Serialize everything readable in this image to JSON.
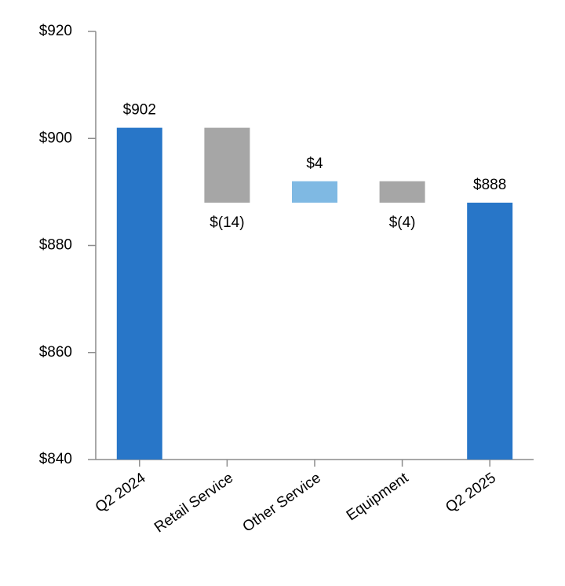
{
  "chart_data": {
    "type": "waterfall",
    "categories": [
      "Q2 2024",
      "Retail Service",
      "Other Service",
      "Equipment",
      "Q2 2025"
    ],
    "values": [
      902,
      -14,
      4,
      -4,
      888
    ],
    "value_labels": [
      "$902",
      "$(14)",
      "$4",
      "$(4)",
      "$888"
    ],
    "colors": [
      "#2876c8",
      "#a6a6a6",
      "#7fb9e3",
      "#a6a6a6",
      "#2876c8"
    ],
    "ylim": [
      840,
      920
    ],
    "yticks": [
      {
        "value": 840,
        "label": "$840"
      },
      {
        "value": 860,
        "label": "$860"
      },
      {
        "value": 880,
        "label": "$880"
      },
      {
        "value": 900,
        "label": "$900"
      },
      {
        "value": 920,
        "label": "$920"
      }
    ]
  }
}
